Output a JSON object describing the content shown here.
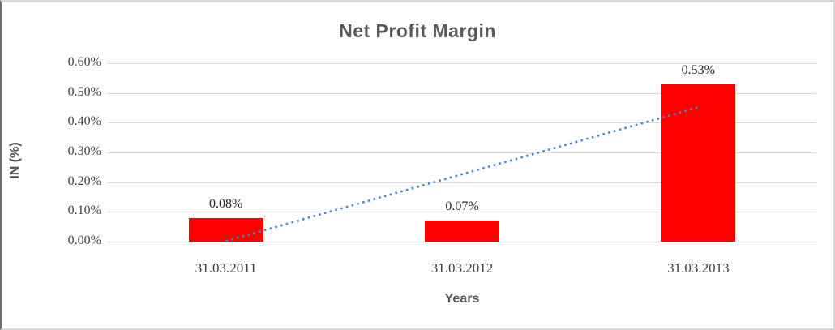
{
  "chart_data": {
    "type": "bar",
    "title": "Net Profit Margin",
    "xlabel": "Years",
    "ylabel": "IN (%)",
    "categories": [
      "31.03.2011",
      "31.03.2012",
      "31.03.2013"
    ],
    "series": [
      {
        "name": "Net Profit Margin",
        "values": [
          0.08,
          0.07,
          0.53
        ]
      }
    ],
    "data_labels": [
      "0.08%",
      "0.07%",
      "0.53%"
    ],
    "y_ticks": [
      "0.00%",
      "0.10%",
      "0.20%",
      "0.30%",
      "0.40%",
      "0.50%",
      "0.60%"
    ],
    "y_tick_values": [
      0.0,
      0.1,
      0.2,
      0.3,
      0.4,
      0.5,
      0.6
    ],
    "ylim": [
      0,
      0.6
    ],
    "grid": true,
    "legend": "none",
    "colors": {
      "bar": "#FF0000",
      "gridline": "#D9D9D9",
      "title_text": "#595959",
      "tick_text": "#404040",
      "data_label_text": "#262626",
      "trendline": "#4A86C8"
    },
    "trendline": {
      "type": "linear",
      "style": "dotted",
      "color": "#4A86C8",
      "start_value": 0.0017,
      "end_value": 0.4517
    }
  }
}
